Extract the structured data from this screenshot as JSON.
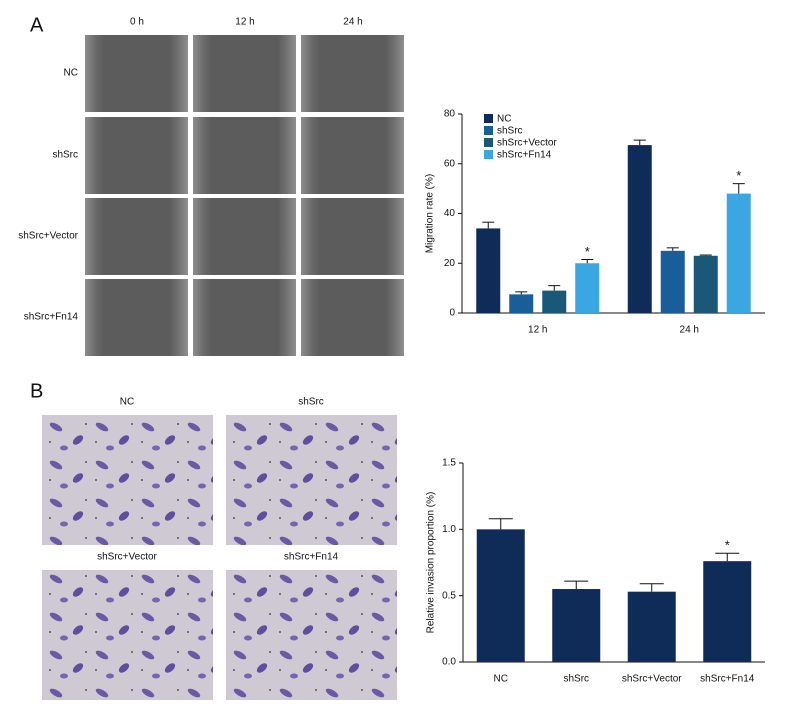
{
  "figure": {
    "panel_a": {
      "label": "A",
      "columns": [
        "0 h",
        "12 h",
        "24 h"
      ],
      "rows": [
        "NC",
        "shSrc",
        "shSrc+Vector",
        "shSrc+Fn14"
      ]
    },
    "panel_b": {
      "label": "B",
      "images": [
        "NC",
        "shSrc",
        "shSrc+Vector",
        "shSrc+Fn14"
      ]
    }
  },
  "chart_data": [
    {
      "type": "bar",
      "y_label": "Migration rate (%)",
      "categories": [
        "12 h",
        "24 h"
      ],
      "series": [
        {
          "name": "NC",
          "color": "#0e2c57",
          "values": [
            34,
            67.5
          ],
          "errors": [
            2.5,
            2
          ]
        },
        {
          "name": "shSrc",
          "color": "#1a5e99",
          "values": [
            7.5,
            25
          ],
          "errors": [
            1,
            1.2
          ]
        },
        {
          "name": "shSrc+Vector",
          "color": "#1b5878",
          "values": [
            9,
            23
          ],
          "errors": [
            2,
            0.3
          ]
        },
        {
          "name": "shSrc+Fn14",
          "color": "#3aa6e2",
          "values": [
            20,
            48
          ],
          "errors": [
            1.5,
            4
          ],
          "markers": [
            "*",
            "*"
          ]
        }
      ],
      "ylim": [
        0,
        80
      ],
      "yticks": [
        0,
        20,
        40,
        60,
        80
      ],
      "legend": "top-left"
    },
    {
      "type": "bar",
      "y_label": "Relative invasion proportion (%)",
      "categories": [
        "NC",
        "shSrc",
        "shSrc+Vector",
        "shSrc+Fn14"
      ],
      "values": [
        1.0,
        0.55,
        0.53,
        0.76
      ],
      "errors": [
        0.08,
        0.06,
        0.06,
        0.06
      ],
      "markers": [
        null,
        null,
        null,
        "*"
      ],
      "color": "#0e2c57",
      "ylim": [
        0,
        1.5
      ],
      "yticks": [
        {
          "value": 0,
          "label": "0.0"
        },
        {
          "value": 0.5,
          "label": "0.5"
        },
        {
          "value": 1,
          "label": "1.0"
        },
        {
          "value": 1.5,
          "label": "1.5"
        }
      ]
    }
  ]
}
